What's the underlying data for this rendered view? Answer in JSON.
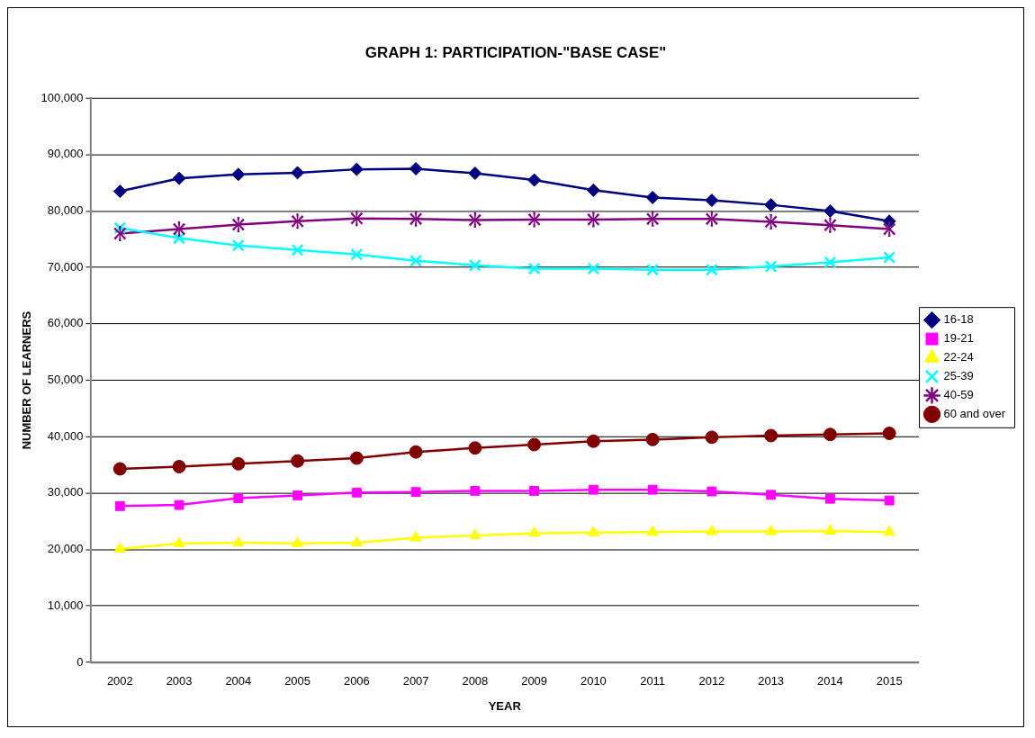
{
  "chart_data": {
    "type": "line",
    "title": "GRAPH 1: PARTICIPATION-\"BASE CASE\"",
    "xlabel": "YEAR",
    "ylabel": "NUMBER OF LEARNERS",
    "categories": [
      "2002",
      "2003",
      "2004",
      "2005",
      "2006",
      "2007",
      "2008",
      "2009",
      "2010",
      "2011",
      "2012",
      "2013",
      "2014",
      "2015"
    ],
    "series": [
      {
        "name": "16-18",
        "color": "#000080",
        "marker": "diamond",
        "values": [
          83500,
          85800,
          86500,
          86800,
          87400,
          87500,
          86700,
          85500,
          83700,
          82400,
          81900,
          81100,
          80000,
          78200
        ]
      },
      {
        "name": "19-21",
        "color": "#ff00ff",
        "marker": "square",
        "values": [
          27700,
          27900,
          29100,
          29600,
          30100,
          30200,
          30400,
          30400,
          30600,
          30600,
          30300,
          29700,
          29000,
          28700
        ]
      },
      {
        "name": "22-24",
        "color": "#ffff00",
        "marker": "triangle",
        "values": [
          20100,
          21100,
          21200,
          21100,
          21200,
          22100,
          22500,
          22900,
          23000,
          23100,
          23200,
          23200,
          23300,
          23100
        ]
      },
      {
        "name": "25-39",
        "color": "#00ffff",
        "marker": "cross",
        "values": [
          77000,
          75200,
          73900,
          73100,
          72300,
          71200,
          70400,
          69800,
          69800,
          69600,
          69600,
          70200,
          70900,
          71800
        ]
      },
      {
        "name": "40-59",
        "color": "#800080",
        "marker": "star",
        "values": [
          76000,
          76800,
          77600,
          78200,
          78700,
          78600,
          78400,
          78500,
          78500,
          78600,
          78600,
          78100,
          77500,
          76800
        ]
      },
      {
        "name": "60 and over",
        "color": "#800000",
        "marker": "circle",
        "values": [
          34300,
          34700,
          35200,
          35700,
          36200,
          37300,
          38000,
          38600,
          39200,
          39500,
          39900,
          40200,
          40400,
          40600
        ]
      }
    ],
    "ylim": [
      0,
      100000
    ],
    "yticks": [
      0,
      {
        "value": 10000,
        "label": "10,000"
      },
      {
        "value": 20000,
        "label": "20,000"
      },
      {
        "value": 30000,
        "label": "30,000"
      },
      {
        "value": 40000,
        "label": "40,000"
      },
      {
        "value": 50000,
        "label": "50,000"
      },
      {
        "value": 60000,
        "label": "60,000"
      },
      {
        "value": 70000,
        "label": "70,000"
      },
      {
        "value": 80000,
        "label": "80,000"
      },
      {
        "value": 90000,
        "label": "90,000"
      },
      {
        "value": 100000,
        "label": "100,000"
      }
    ],
    "grid": "y",
    "legend": "right",
    "line_style": "solid"
  }
}
